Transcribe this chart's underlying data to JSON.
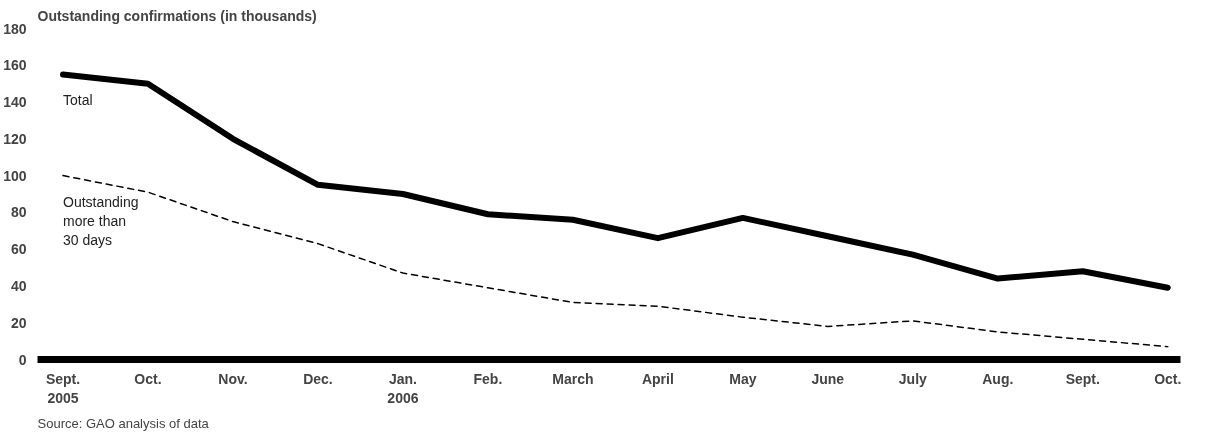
{
  "chart_data": {
    "type": "line",
    "ylabel": "Outstanding confirmations (in thousands)",
    "categories": [
      "Sept.\n2005",
      "Oct.",
      "Nov.",
      "Dec.",
      "Jan.\n2006",
      "Feb.",
      "March",
      "April",
      "May",
      "June",
      "July",
      "Aug.",
      "Sept.",
      "Oct."
    ],
    "series": [
      {
        "name": "Total",
        "color": "#000000",
        "line_style": "solid",
        "values": [
          155,
          150,
          120,
          95,
          90,
          79,
          76,
          66,
          77,
          67,
          57,
          44,
          48,
          39
        ]
      },
      {
        "name": "Outstanding\nmore than\n30 days",
        "color": "#000000",
        "line_style": "dashed",
        "values": [
          100,
          91,
          75,
          63,
          47,
          39,
          31,
          29,
          23,
          18,
          21,
          15,
          11,
          7
        ]
      }
    ],
    "ylim": [
      0,
      180
    ],
    "yticks": [
      0,
      20,
      40,
      60,
      80,
      100,
      120,
      140,
      160,
      180
    ],
    "grid": false,
    "marker": "none",
    "annotations": [
      "Source: GAO analysis of data"
    ]
  }
}
